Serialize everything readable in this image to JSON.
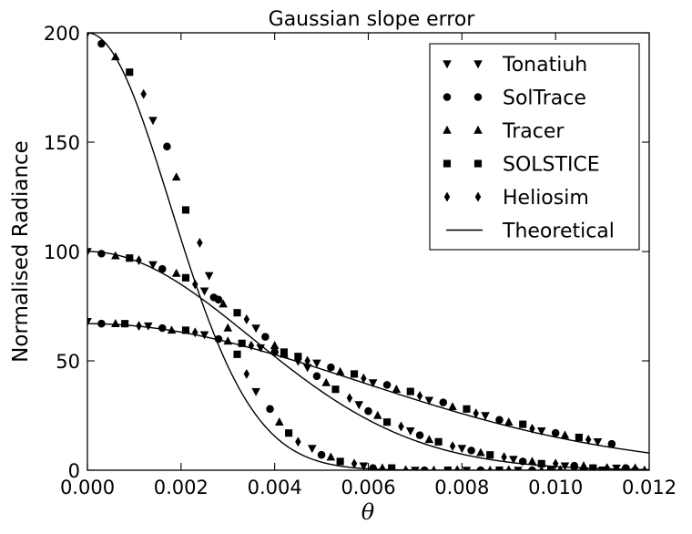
{
  "chart_data": {
    "type": "line",
    "title": "Gaussian slope error",
    "xlabel": "θ",
    "ylabel": "Normalised Radiance",
    "xlim": [
      0,
      0.012
    ],
    "ylim": [
      0,
      200
    ],
    "x_ticks": [
      "0.000",
      "0.002",
      "0.004",
      "0.006",
      "0.008",
      "0.010",
      "0.012"
    ],
    "y_ticks": [
      "0",
      "50",
      "100",
      "150",
      "200"
    ],
    "grid": false,
    "legend_position": "top-right",
    "legend": [
      {
        "label": "Tonatiuh",
        "marker": "triangle-down"
      },
      {
        "label": "SolTrace",
        "marker": "circle"
      },
      {
        "label": "Tracer",
        "marker": "triangle-up"
      },
      {
        "label": "SOLSTICE",
        "marker": "square"
      },
      {
        "label": "Heliosim",
        "marker": "diamond"
      },
      {
        "label": "Theoretical",
        "marker": "line"
      }
    ],
    "curves": [
      {
        "peak": 200,
        "sigma": 0.00177
      },
      {
        "peak": 100,
        "sigma": 0.0035
      },
      {
        "peak": 67,
        "sigma": 0.0058
      }
    ],
    "marker_points": [
      [
        {
          "x": 0.0,
          "y": 200,
          "m": "triangle-down"
        },
        {
          "x": 0.0003,
          "y": 195,
          "m": "circle"
        },
        {
          "x": 0.0006,
          "y": 189,
          "m": "triangle-up"
        },
        {
          "x": 0.0009,
          "y": 182,
          "m": "square"
        },
        {
          "x": 0.0012,
          "y": 172,
          "m": "diamond"
        },
        {
          "x": 0.0014,
          "y": 160,
          "m": "triangle-down"
        },
        {
          "x": 0.0017,
          "y": 148,
          "m": "circle"
        },
        {
          "x": 0.0019,
          "y": 134,
          "m": "triangle-up"
        },
        {
          "x": 0.0021,
          "y": 119,
          "m": "square"
        },
        {
          "x": 0.0024,
          "y": 104,
          "m": "diamond"
        },
        {
          "x": 0.0026,
          "y": 89,
          "m": "triangle-down"
        },
        {
          "x": 0.0028,
          "y": 78,
          "m": "circle"
        },
        {
          "x": 0.003,
          "y": 65,
          "m": "triangle-up"
        },
        {
          "x": 0.0032,
          "y": 53,
          "m": "square"
        },
        {
          "x": 0.0034,
          "y": 44,
          "m": "diamond"
        },
        {
          "x": 0.0036,
          "y": 36,
          "m": "triangle-down"
        },
        {
          "x": 0.0039,
          "y": 28,
          "m": "circle"
        },
        {
          "x": 0.0041,
          "y": 22,
          "m": "triangle-up"
        },
        {
          "x": 0.0043,
          "y": 17,
          "m": "square"
        },
        {
          "x": 0.0045,
          "y": 13,
          "m": "diamond"
        },
        {
          "x": 0.0048,
          "y": 10,
          "m": "triangle-down"
        },
        {
          "x": 0.005,
          "y": 7,
          "m": "circle"
        },
        {
          "x": 0.0052,
          "y": 6,
          "m": "triangle-up"
        },
        {
          "x": 0.0054,
          "y": 4,
          "m": "square"
        },
        {
          "x": 0.0057,
          "y": 3,
          "m": "diamond"
        },
        {
          "x": 0.0059,
          "y": 2,
          "m": "triangle-down"
        },
        {
          "x": 0.0061,
          "y": 1,
          "m": "circle"
        },
        {
          "x": 0.0063,
          "y": 1,
          "m": "triangle-up"
        },
        {
          "x": 0.0065,
          "y": 1,
          "m": "square"
        },
        {
          "x": 0.0068,
          "y": 0,
          "m": "diamond"
        },
        {
          "x": 0.007,
          "y": 0,
          "m": "triangle-down"
        },
        {
          "x": 0.0072,
          "y": 0,
          "m": "circle"
        },
        {
          "x": 0.0074,
          "y": 0,
          "m": "triangle-up"
        },
        {
          "x": 0.0077,
          "y": 0,
          "m": "square"
        },
        {
          "x": 0.0079,
          "y": 0,
          "m": "diamond"
        },
        {
          "x": 0.0081,
          "y": 0,
          "m": "triangle-down"
        },
        {
          "x": 0.0084,
          "y": 0,
          "m": "circle"
        },
        {
          "x": 0.0086,
          "y": 0,
          "m": "triangle-up"
        },
        {
          "x": 0.0088,
          "y": 0,
          "m": "square"
        },
        {
          "x": 0.009,
          "y": 0,
          "m": "diamond"
        },
        {
          "x": 0.0092,
          "y": 0,
          "m": "triangle-down"
        },
        {
          "x": 0.0095,
          "y": 0,
          "m": "circle"
        },
        {
          "x": 0.0097,
          "y": 0,
          "m": "triangle-up"
        },
        {
          "x": 0.0099,
          "y": 0,
          "m": "square"
        },
        {
          "x": 0.0101,
          "y": 0,
          "m": "diamond"
        },
        {
          "x": 0.0104,
          "y": 0,
          "m": "triangle-down"
        },
        {
          "x": 0.0106,
          "y": 0,
          "m": "circle"
        },
        {
          "x": 0.0108,
          "y": 0,
          "m": "triangle-up"
        },
        {
          "x": 0.011,
          "y": 0,
          "m": "square"
        },
        {
          "x": 0.0113,
          "y": 0,
          "m": "diamond"
        },
        {
          "x": 0.0115,
          "y": 0,
          "m": "triangle-down"
        },
        {
          "x": 0.0117,
          "y": 0,
          "m": "circle"
        },
        {
          "x": 0.0119,
          "y": 0,
          "m": "triangle-up"
        }
      ],
      [
        {
          "x": 0.0,
          "y": 100,
          "m": "triangle-down"
        },
        {
          "x": 0.0003,
          "y": 99,
          "m": "circle"
        },
        {
          "x": 0.0006,
          "y": 98,
          "m": "triangle-up"
        },
        {
          "x": 0.0009,
          "y": 97,
          "m": "square"
        },
        {
          "x": 0.0011,
          "y": 96,
          "m": "diamond"
        },
        {
          "x": 0.0014,
          "y": 94,
          "m": "triangle-down"
        },
        {
          "x": 0.0016,
          "y": 92,
          "m": "circle"
        },
        {
          "x": 0.0019,
          "y": 90,
          "m": "triangle-up"
        },
        {
          "x": 0.0021,
          "y": 88,
          "m": "square"
        },
        {
          "x": 0.0023,
          "y": 85,
          "m": "diamond"
        },
        {
          "x": 0.0025,
          "y": 82,
          "m": "triangle-down"
        },
        {
          "x": 0.0027,
          "y": 79,
          "m": "circle"
        },
        {
          "x": 0.0029,
          "y": 76,
          "m": "triangle-up"
        },
        {
          "x": 0.0032,
          "y": 72,
          "m": "square"
        },
        {
          "x": 0.0034,
          "y": 69,
          "m": "diamond"
        },
        {
          "x": 0.0036,
          "y": 65,
          "m": "triangle-down"
        },
        {
          "x": 0.0038,
          "y": 61,
          "m": "circle"
        },
        {
          "x": 0.004,
          "y": 57,
          "m": "triangle-up"
        },
        {
          "x": 0.0042,
          "y": 54,
          "m": "square"
        },
        {
          "x": 0.0045,
          "y": 50,
          "m": "diamond"
        },
        {
          "x": 0.0047,
          "y": 47,
          "m": "triangle-down"
        },
        {
          "x": 0.0049,
          "y": 43,
          "m": "circle"
        },
        {
          "x": 0.0051,
          "y": 40,
          "m": "triangle-up"
        },
        {
          "x": 0.0053,
          "y": 37,
          "m": "square"
        },
        {
          "x": 0.0056,
          "y": 33,
          "m": "diamond"
        },
        {
          "x": 0.0058,
          "y": 30,
          "m": "triangle-down"
        },
        {
          "x": 0.006,
          "y": 27,
          "m": "circle"
        },
        {
          "x": 0.0062,
          "y": 25,
          "m": "triangle-up"
        },
        {
          "x": 0.0064,
          "y": 22,
          "m": "square"
        },
        {
          "x": 0.0067,
          "y": 20,
          "m": "diamond"
        },
        {
          "x": 0.0069,
          "y": 18,
          "m": "triangle-down"
        },
        {
          "x": 0.0071,
          "y": 16,
          "m": "circle"
        },
        {
          "x": 0.0073,
          "y": 14,
          "m": "triangle-up"
        },
        {
          "x": 0.0075,
          "y": 13,
          "m": "square"
        },
        {
          "x": 0.0078,
          "y": 11,
          "m": "diamond"
        },
        {
          "x": 0.008,
          "y": 10,
          "m": "triangle-down"
        },
        {
          "x": 0.0082,
          "y": 9,
          "m": "circle"
        },
        {
          "x": 0.0084,
          "y": 8,
          "m": "triangle-up"
        },
        {
          "x": 0.0086,
          "y": 7,
          "m": "square"
        },
        {
          "x": 0.0089,
          "y": 6,
          "m": "diamond"
        },
        {
          "x": 0.0091,
          "y": 5,
          "m": "triangle-down"
        },
        {
          "x": 0.0093,
          "y": 4,
          "m": "circle"
        },
        {
          "x": 0.0095,
          "y": 4,
          "m": "triangle-up"
        },
        {
          "x": 0.0097,
          "y": 3,
          "m": "square"
        },
        {
          "x": 0.01,
          "y": 3,
          "m": "diamond"
        },
        {
          "x": 0.0102,
          "y": 2,
          "m": "triangle-down"
        },
        {
          "x": 0.0104,
          "y": 2,
          "m": "circle"
        },
        {
          "x": 0.0106,
          "y": 2,
          "m": "triangle-up"
        },
        {
          "x": 0.0108,
          "y": 1,
          "m": "square"
        },
        {
          "x": 0.0111,
          "y": 1,
          "m": "diamond"
        },
        {
          "x": 0.0113,
          "y": 1,
          "m": "triangle-down"
        },
        {
          "x": 0.0115,
          "y": 1,
          "m": "circle"
        },
        {
          "x": 0.0117,
          "y": 1,
          "m": "triangle-up"
        }
      ],
      [
        {
          "x": 0.0,
          "y": 68,
          "m": "triangle-down"
        },
        {
          "x": 0.0003,
          "y": 67,
          "m": "circle"
        },
        {
          "x": 0.0006,
          "y": 67,
          "m": "triangle-up"
        },
        {
          "x": 0.0008,
          "y": 67,
          "m": "square"
        },
        {
          "x": 0.0011,
          "y": 66,
          "m": "diamond"
        },
        {
          "x": 0.0013,
          "y": 66,
          "m": "triangle-down"
        },
        {
          "x": 0.0016,
          "y": 65,
          "m": "circle"
        },
        {
          "x": 0.0018,
          "y": 64,
          "m": "triangle-up"
        },
        {
          "x": 0.0021,
          "y": 64,
          "m": "square"
        },
        {
          "x": 0.0023,
          "y": 63,
          "m": "diamond"
        },
        {
          "x": 0.0025,
          "y": 62,
          "m": "triangle-down"
        },
        {
          "x": 0.0028,
          "y": 60,
          "m": "circle"
        },
        {
          "x": 0.003,
          "y": 59,
          "m": "triangle-up"
        },
        {
          "x": 0.0033,
          "y": 58,
          "m": "square"
        },
        {
          "x": 0.0035,
          "y": 57,
          "m": "diamond"
        },
        {
          "x": 0.0037,
          "y": 56,
          "m": "triangle-down"
        },
        {
          "x": 0.004,
          "y": 54,
          "m": "circle"
        },
        {
          "x": 0.0042,
          "y": 53,
          "m": "triangle-up"
        },
        {
          "x": 0.0045,
          "y": 52,
          "m": "square"
        },
        {
          "x": 0.0047,
          "y": 50,
          "m": "diamond"
        },
        {
          "x": 0.0049,
          "y": 49,
          "m": "triangle-down"
        },
        {
          "x": 0.0052,
          "y": 47,
          "m": "circle"
        },
        {
          "x": 0.0054,
          "y": 45,
          "m": "triangle-up"
        },
        {
          "x": 0.0057,
          "y": 44,
          "m": "square"
        },
        {
          "x": 0.0059,
          "y": 42,
          "m": "diamond"
        },
        {
          "x": 0.0061,
          "y": 40,
          "m": "triangle-down"
        },
        {
          "x": 0.0064,
          "y": 39,
          "m": "circle"
        },
        {
          "x": 0.0066,
          "y": 37,
          "m": "triangle-up"
        },
        {
          "x": 0.0069,
          "y": 36,
          "m": "square"
        },
        {
          "x": 0.0071,
          "y": 34,
          "m": "diamond"
        },
        {
          "x": 0.0073,
          "y": 32,
          "m": "triangle-down"
        },
        {
          "x": 0.0076,
          "y": 31,
          "m": "circle"
        },
        {
          "x": 0.0078,
          "y": 29,
          "m": "triangle-up"
        },
        {
          "x": 0.0081,
          "y": 28,
          "m": "square"
        },
        {
          "x": 0.0083,
          "y": 26,
          "m": "diamond"
        },
        {
          "x": 0.0085,
          "y": 25,
          "m": "triangle-down"
        },
        {
          "x": 0.0088,
          "y": 23,
          "m": "circle"
        },
        {
          "x": 0.009,
          "y": 22,
          "m": "triangle-up"
        },
        {
          "x": 0.0093,
          "y": 21,
          "m": "square"
        },
        {
          "x": 0.0095,
          "y": 19,
          "m": "diamond"
        },
        {
          "x": 0.0097,
          "y": 18,
          "m": "triangle-down"
        },
        {
          "x": 0.01,
          "y": 17,
          "m": "circle"
        },
        {
          "x": 0.0102,
          "y": 16,
          "m": "triangle-up"
        },
        {
          "x": 0.0105,
          "y": 15,
          "m": "square"
        },
        {
          "x": 0.0107,
          "y": 14,
          "m": "diamond"
        },
        {
          "x": 0.0109,
          "y": 13,
          "m": "triangle-down"
        },
        {
          "x": 0.0112,
          "y": 12,
          "m": "circle"
        }
      ]
    ]
  }
}
